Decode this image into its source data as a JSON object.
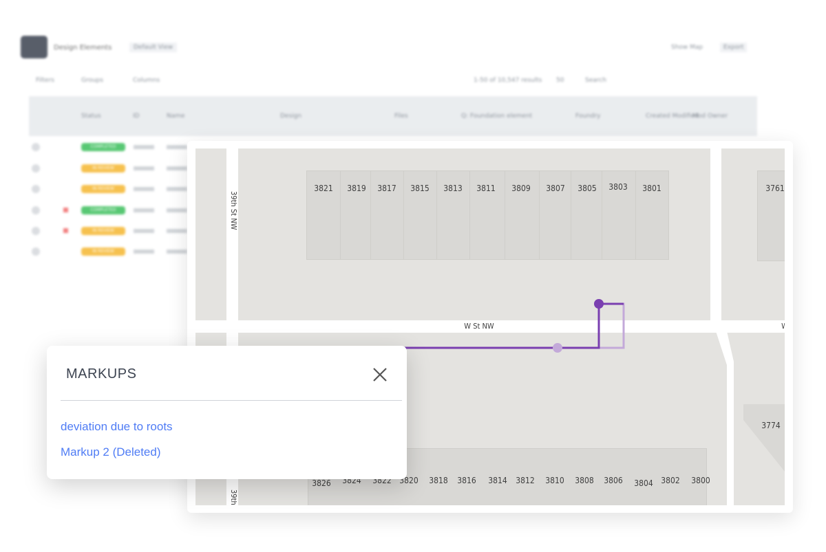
{
  "app": {
    "title": "Design Elements",
    "view_selector": "Default View",
    "show_map": "Show Map",
    "export": "Export",
    "toolbar": {
      "filters": "Filters",
      "groups": "Groups",
      "columns": "Columns"
    },
    "results": "1-50 of 10,547 results",
    "per_page": "50",
    "search_placeholder": "Search",
    "columns": [
      "Status",
      "ID",
      "Name",
      "Design",
      "Files",
      "Q: Foundation element",
      "Foundry",
      "Created Modified",
      "Mod Owner"
    ],
    "rows": [
      {
        "status": "COMPLETED",
        "status_color": "#3cbf5c",
        "flag": false
      },
      {
        "status": "IN REVIEW",
        "status_color": "#f5b731",
        "flag": false
      },
      {
        "status": "IN REVIEW",
        "status_color": "#f5b731",
        "flag": false
      },
      {
        "status": "COMPLETED",
        "status_color": "#3cbf5c",
        "flag": true
      },
      {
        "status": "IN REVIEW",
        "status_color": "#f5b731",
        "flag": true
      },
      {
        "status": "IN REVIEW",
        "status_color": "#f5b731",
        "flag": false
      }
    ]
  },
  "map": {
    "streets": {
      "vertical_left": "39th St NW",
      "horizontal": "W St NW",
      "right_cut": "W",
      "bottom_left": "39th"
    },
    "top_lots": [
      "3821",
      "3819",
      "3817",
      "3815",
      "3813",
      "3811",
      "3809",
      "3807",
      "3805",
      "3803",
      "3801"
    ],
    "right_lot": "3761",
    "bottom_lots": [
      "3826",
      "3824",
      "3822",
      "3820",
      "3818",
      "3816",
      "3814",
      "3812",
      "3810",
      "3808",
      "3806",
      "3804",
      "3802",
      "3800"
    ],
    "corner_lot": "3774",
    "markup_color": "#7a3fb0",
    "markup_deleted_color": "#c3a9d9"
  },
  "markups_panel": {
    "title": "MARKUPS",
    "items": [
      "deviation due to roots",
      "Markup 2 (Deleted)"
    ],
    "close_icon": "close-icon"
  }
}
